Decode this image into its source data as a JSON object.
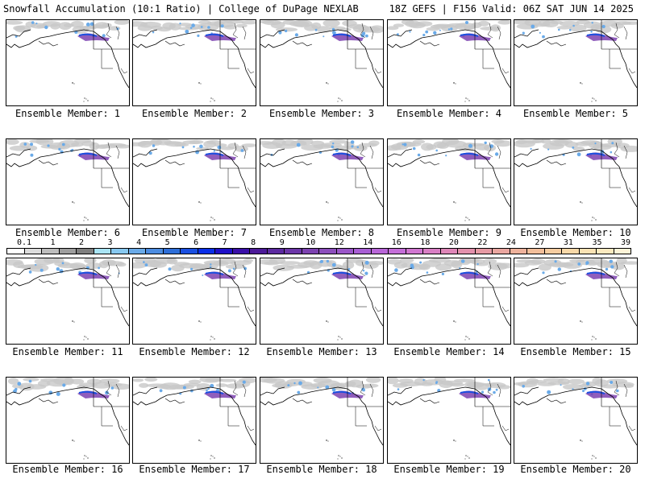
{
  "header": {
    "left_title": "Snowfall Accumulation (10:1 Ratio) | College of DuPage NEXLAB",
    "right_title": "18Z GEFS | F156 Valid: 06Z SAT JUN 14 2025"
  },
  "members": [
    "Ensemble Member: 1",
    "Ensemble Member: 2",
    "Ensemble Member: 3",
    "Ensemble Member: 4",
    "Ensemble Member: 5",
    "Ensemble Member: 6",
    "Ensemble Member: 7",
    "Ensemble Member: 8",
    "Ensemble Member: 9",
    "Ensemble Member: 10",
    "Ensemble Member: 11",
    "Ensemble Member: 12",
    "Ensemble Member: 13",
    "Ensemble Member: 14",
    "Ensemble Member: 15",
    "Ensemble Member: 16",
    "Ensemble Member: 17",
    "Ensemble Member: 18",
    "Ensemble Member: 19",
    "Ensemble Member: 20"
  ],
  "scale": {
    "labels": [
      "0.1",
      "1",
      "2",
      "3",
      "4",
      "5",
      "6",
      "7",
      "8",
      "9",
      "10",
      "12",
      "14",
      "16",
      "18",
      "20",
      "22",
      "24",
      "27",
      "31",
      "35",
      "39"
    ],
    "colors": [
      "#ffffff",
      "#dcdcdc",
      "#bdbdbd",
      "#9e9e9e",
      "#7f7f7f",
      "#a9e4f5",
      "#87c8f0",
      "#6aaae8",
      "#4c8ce0",
      "#2e6ed8",
      "#1a4fe0",
      "#0a2fe8",
      "#1f10c8",
      "#3a0fa8",
      "#4c1a98",
      "#5c2aa0",
      "#6c36a8",
      "#7c42b0",
      "#8c4ebc",
      "#9a56c8",
      "#a85ed4",
      "#b866d8",
      "#c46ed8",
      "#d076d0",
      "#d87ec4",
      "#de86b8",
      "#e290ac",
      "#e69aa4",
      "#eaa6a0",
      "#eeb29c",
      "#f2be9a",
      "#f6cca0",
      "#f8d8a8",
      "#fae2b4",
      "#fceac0",
      "#fef4d8"
    ]
  }
}
